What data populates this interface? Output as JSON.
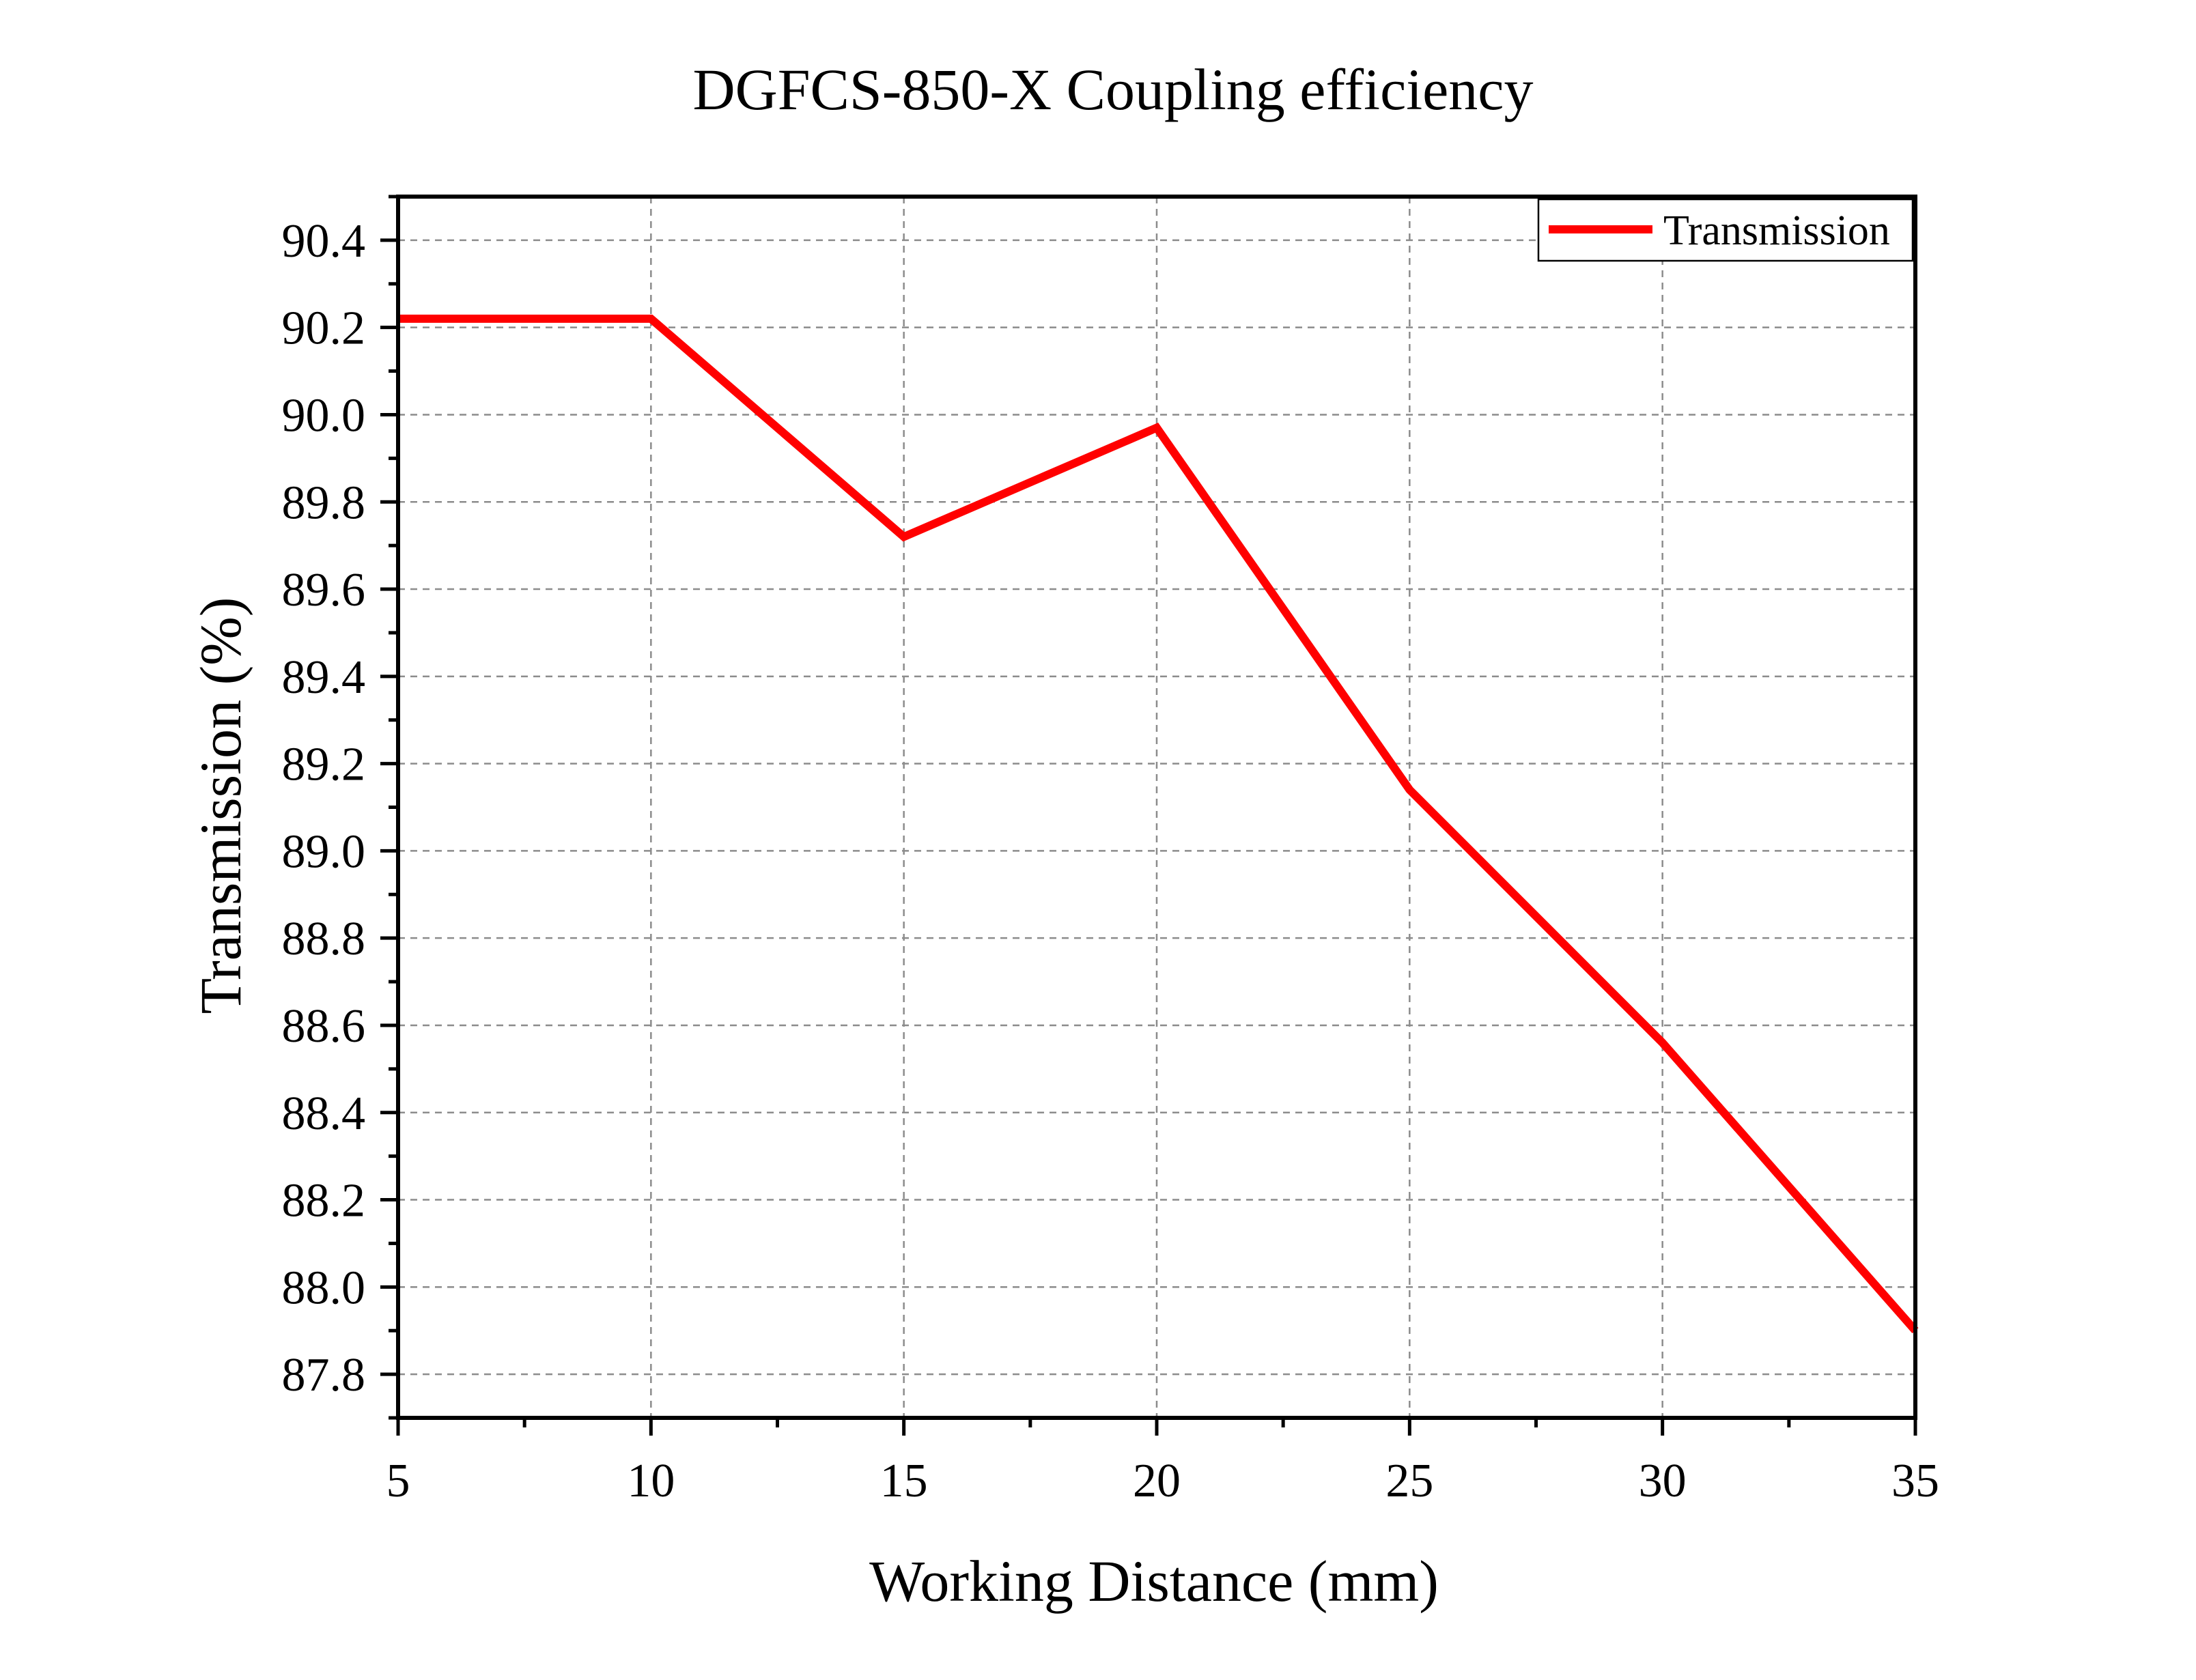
{
  "chart_data": {
    "type": "line",
    "title": "DGFCS-850-X Coupling efficiency",
    "xlabel": "Working Distance (mm)",
    "ylabel": "Transmission (%)",
    "xlim": [
      5,
      35
    ],
    "ylim": [
      87.7,
      90.5
    ],
    "x_ticks": [
      5,
      10,
      15,
      20,
      25,
      30,
      35
    ],
    "y_ticks": [
      87.8,
      88.0,
      88.2,
      88.4,
      88.6,
      88.8,
      89.0,
      89.2,
      89.4,
      89.6,
      89.8,
      90.0,
      90.2,
      90.4
    ],
    "grid": true,
    "legend_position": "top-right",
    "series": [
      {
        "name": "Transmission",
        "color": "#ff0000",
        "x": [
          5,
          10,
          15,
          20,
          25,
          30,
          35
        ],
        "y": [
          90.22,
          90.22,
          89.72,
          89.97,
          89.14,
          88.56,
          87.9
        ]
      }
    ]
  }
}
